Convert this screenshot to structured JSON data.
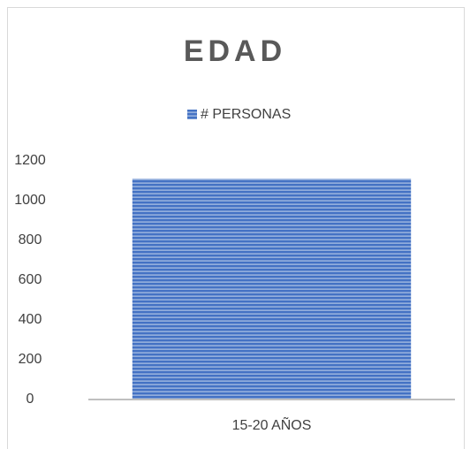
{
  "chart_data": {
    "type": "bar",
    "title": "EDAD",
    "categories": [
      "15-20 AÑOS"
    ],
    "series": [
      {
        "name": "# PERSONAS",
        "color": "#4472c4",
        "values": [
          1110
        ]
      }
    ],
    "ylim": [
      0,
      1200
    ],
    "yticks": [
      0,
      200,
      400,
      600,
      800,
      1000,
      1200
    ],
    "grid": false,
    "legend": "top"
  }
}
